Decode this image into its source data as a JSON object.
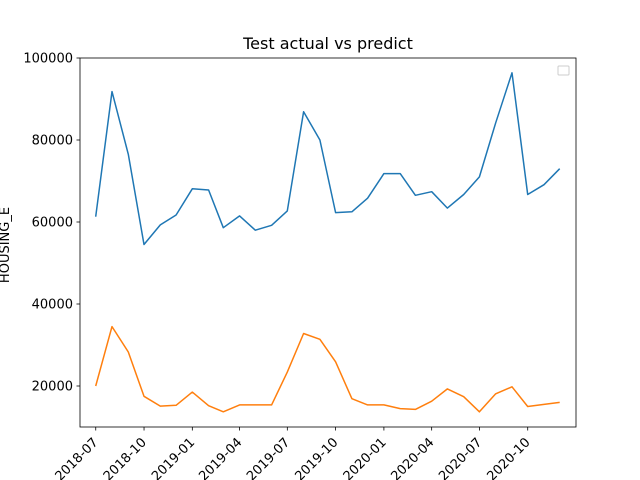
{
  "chart_data": {
    "type": "line",
    "title": "Test actual vs predict",
    "xlabel": "",
    "ylabel": "HOUSING_E",
    "x": [
      "2018-07",
      "2018-08",
      "2018-09",
      "2018-10",
      "2018-11",
      "2018-12",
      "2019-01",
      "2019-02",
      "2019-03",
      "2019-04",
      "2019-05",
      "2019-06",
      "2019-07",
      "2019-08",
      "2019-09",
      "2019-10",
      "2019-11",
      "2019-12",
      "2020-01",
      "2020-02",
      "2020-03",
      "2020-04",
      "2020-05",
      "2020-06",
      "2020-07",
      "2020-08",
      "2020-09",
      "2020-10",
      "2020-11",
      "2020-12"
    ],
    "xlim": [
      "2018-06-01",
      "2021-01-01"
    ],
    "x_ticks": [
      "2018-07",
      "2018-10",
      "2019-01",
      "2019-04",
      "2019-07",
      "2019-10",
      "2020-01",
      "2020-04",
      "2020-07",
      "2020-10"
    ],
    "ylim": [
      10000,
      100000
    ],
    "y_ticks": [
      20000,
      40000,
      60000,
      80000,
      100000
    ],
    "y_tick_labels": [
      "20000",
      "40000",
      "60000",
      "80000",
      "100000"
    ],
    "grid": false,
    "legend": {
      "placement": "top-right",
      "entries": []
    },
    "series": [
      {
        "color": "#1f77b4",
        "values": [
          61300,
          91800,
          76500,
          54500,
          59300,
          61700,
          68100,
          67800,
          58600,
          61500,
          58000,
          59200,
          62700,
          86900,
          80000,
          62300,
          62500,
          65800,
          71800,
          71800,
          66500,
          67400,
          63400,
          66700,
          71000,
          84200,
          96400,
          66700,
          69100,
          73000
        ]
      },
      {
        "color": "#ff7f0e",
        "values": [
          20000,
          34500,
          28300,
          17500,
          15100,
          15300,
          18500,
          15200,
          13700,
          15400,
          15400,
          15400,
          23400,
          32800,
          31400,
          25900,
          16900,
          15400,
          15400,
          14500,
          14300,
          16300,
          19300,
          17400,
          13700,
          18100,
          19800,
          15000,
          15500,
          16000
        ]
      }
    ]
  }
}
